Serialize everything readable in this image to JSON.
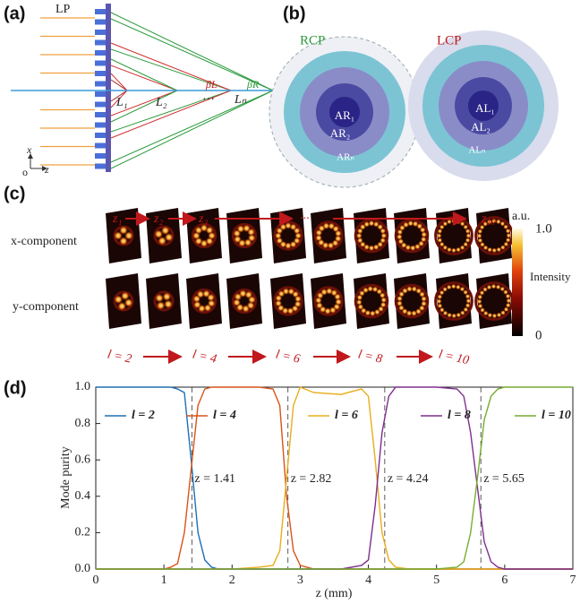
{
  "panels": {
    "a": {
      "label": "(a)",
      "lp": "LP",
      "lens_labels": [
        "L₁",
        "L₂",
        "···",
        "Lₙ"
      ],
      "beta_l": "βL",
      "beta_r": "βR",
      "z": "z",
      "axis_x": "x",
      "axis_o": "o",
      "axis_z": "z"
    },
    "b": {
      "label": "(b)",
      "rcp": "RCP",
      "lcp": "LCP",
      "rcp_rings": [
        "AR₁",
        "AR₂",
        "ARₙ"
      ],
      "lcp_rings": [
        "AL₁",
        "AL₂",
        "ALₙ"
      ]
    },
    "c": {
      "label": "(c)",
      "z_labels": [
        "z₁",
        "z₂",
        "z₃",
        "···",
        "z₁₀"
      ],
      "rows": [
        "x-component",
        "y-component"
      ],
      "modes": [
        "l = 2",
        "l = 4",
        "l = 6",
        "l = 8",
        "l = 10"
      ],
      "colorbar": {
        "unit": "a.u.",
        "max_label": "1.0",
        "label": "Intensity",
        "min_label": "0"
      }
    }
  },
  "chart_data": {
    "type": "line",
    "panel_label": "(d)",
    "xlabel": "z (mm)",
    "ylabel": "Mode purity",
    "x": [
      0,
      0.5,
      1.0,
      1.1,
      1.2,
      1.3,
      1.4,
      1.5,
      1.6,
      1.7,
      1.8,
      2.0,
      2.4,
      2.6,
      2.7,
      2.8,
      2.9,
      3.0,
      3.2,
      3.6,
      3.9,
      4.0,
      4.1,
      4.2,
      4.3,
      4.4,
      4.6,
      5.0,
      5.3,
      5.4,
      5.5,
      5.6,
      5.7,
      5.8,
      5.9,
      6.0,
      6.5,
      7.0
    ],
    "series": [
      {
        "name": "l = 2",
        "color": "#1f6fb5",
        "values": [
          1,
          1,
          1,
          1,
          0.99,
          0.97,
          0.6,
          0.2,
          0.05,
          0.01,
          0,
          0,
          0,
          0,
          0,
          0,
          0,
          0,
          0,
          0,
          0,
          0,
          0,
          0,
          0,
          0,
          0,
          0,
          0,
          0,
          0,
          0,
          0,
          0,
          0,
          0,
          0,
          0
        ]
      },
      {
        "name": "l = 4",
        "color": "#d95319",
        "values": [
          0,
          0,
          0,
          0.01,
          0.03,
          0.2,
          0.55,
          0.9,
          0.99,
          1,
          1,
          1,
          1,
          0.99,
          0.9,
          0.4,
          0.1,
          0.02,
          0,
          0,
          0,
          0,
          0,
          0,
          0,
          0,
          0,
          0,
          0,
          0,
          0,
          0,
          0,
          0,
          0,
          0,
          0,
          0
        ]
      },
      {
        "name": "l = 6",
        "color": "#e8ad1c",
        "values": [
          0,
          0,
          0,
          0,
          0,
          0,
          0,
          0,
          0,
          0,
          0,
          0,
          0.01,
          0.02,
          0.1,
          0.5,
          0.9,
          1,
          0.97,
          0.96,
          0.99,
          0.95,
          0.6,
          0.2,
          0.05,
          0.01,
          0,
          0,
          0,
          0,
          0,
          0,
          0,
          0,
          0,
          0,
          0,
          0
        ]
      },
      {
        "name": "l = 8",
        "color": "#7e2f8e",
        "values": [
          0,
          0,
          0,
          0,
          0,
          0,
          0,
          0,
          0,
          0,
          0,
          0,
          0,
          0,
          0,
          0,
          0,
          0,
          0,
          0,
          0.02,
          0.05,
          0.35,
          0.75,
          0.95,
          1,
          1,
          1,
          0.99,
          0.95,
          0.75,
          0.45,
          0.15,
          0.04,
          0.01,
          0,
          0,
          0
        ]
      },
      {
        "name": "l = 10",
        "color": "#77ac30",
        "values": [
          0,
          0,
          0,
          0,
          0,
          0,
          0,
          0,
          0,
          0,
          0,
          0,
          0,
          0,
          0,
          0,
          0,
          0,
          0,
          0,
          0,
          0,
          0,
          0,
          0,
          0,
          0,
          0,
          0.01,
          0.04,
          0.2,
          0.5,
          0.82,
          0.95,
          0.99,
          1,
          1,
          1
        ]
      }
    ],
    "annotations": [
      {
        "x": 1.41,
        "label": "z = 1.41"
      },
      {
        "x": 2.82,
        "label": "z = 2.82"
      },
      {
        "x": 4.24,
        "label": "z = 4.24"
      },
      {
        "x": 5.65,
        "label": "z = 5.65"
      }
    ],
    "xlim": [
      0,
      7
    ],
    "xticks": [
      0,
      1,
      2,
      3,
      4,
      5,
      6,
      7
    ],
    "ylim": [
      0,
      1
    ],
    "yticks": [
      {
        "value": 0,
        "label": "0.0"
      },
      0.2,
      0.4,
      0.6,
      0.8,
      {
        "value": 1,
        "label": "1.0"
      }
    ],
    "grid": false
  }
}
